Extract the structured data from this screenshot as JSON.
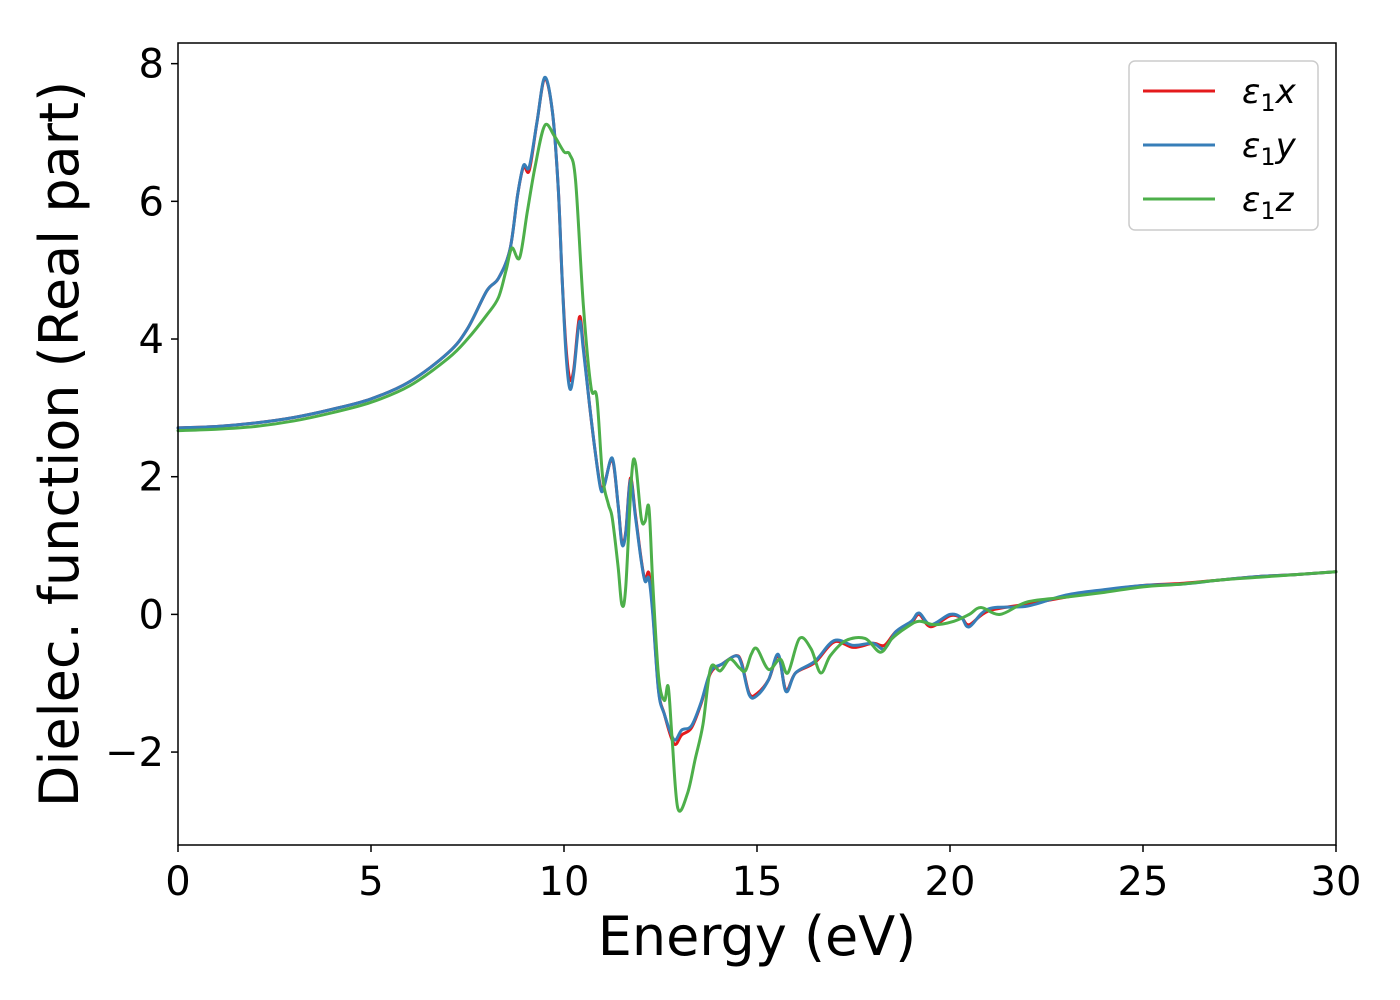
{
  "chart_data": {
    "type": "line",
    "title": "",
    "xlabel": "Energy (eV)",
    "ylabel": "Dielec. function (Real part)",
    "xlim": [
      0,
      30
    ],
    "ylim": [
      -3.35,
      8.3
    ],
    "x_ticks": [
      0,
      5,
      10,
      15,
      20,
      25,
      30
    ],
    "y_ticks": [
      -2,
      0,
      2,
      4,
      6,
      8
    ],
    "x_tick_labels": [
      "0",
      "5",
      "10",
      "15",
      "20",
      "25",
      "30"
    ],
    "y_tick_labels": [
      "−2",
      "0",
      "2",
      "4",
      "6",
      "8"
    ],
    "grid": false,
    "legend_position": "top-right",
    "series": [
      {
        "name": "ε1x",
        "name_base": "ε",
        "name_sub": "1",
        "name_var": "x",
        "color": "#e41a1c",
        "points": [
          [
            0,
            2.71
          ],
          [
            1,
            2.73
          ],
          [
            2,
            2.78
          ],
          [
            3,
            2.86
          ],
          [
            4,
            2.98
          ],
          [
            5,
            3.13
          ],
          [
            6,
            3.38
          ],
          [
            7,
            3.8
          ],
          [
            7.5,
            4.15
          ],
          [
            8,
            4.7
          ],
          [
            8.3,
            4.88
          ],
          [
            8.6,
            5.3
          ],
          [
            8.8,
            6.1
          ],
          [
            8.95,
            6.5
          ],
          [
            9.1,
            6.45
          ],
          [
            9.3,
            7.15
          ],
          [
            9.5,
            7.78
          ],
          [
            9.7,
            7.3
          ],
          [
            9.85,
            6.2
          ],
          [
            9.95,
            4.9
          ],
          [
            10.05,
            3.9
          ],
          [
            10.15,
            3.42
          ],
          [
            10.25,
            3.55
          ],
          [
            10.4,
            4.32
          ],
          [
            10.5,
            3.9
          ],
          [
            10.65,
            3.1
          ],
          [
            10.8,
            2.4
          ],
          [
            10.95,
            1.85
          ],
          [
            11.05,
            1.9
          ],
          [
            11.25,
            2.25
          ],
          [
            11.4,
            1.6
          ],
          [
            11.5,
            1.05
          ],
          [
            11.6,
            1.2
          ],
          [
            11.72,
            1.98
          ],
          [
            11.85,
            1.45
          ],
          [
            12.0,
            0.8
          ],
          [
            12.1,
            0.5
          ],
          [
            12.2,
            0.6
          ],
          [
            12.3,
            0.05
          ],
          [
            12.45,
            -1.1
          ],
          [
            12.6,
            -1.45
          ],
          [
            12.85,
            -1.88
          ],
          [
            13.05,
            -1.75
          ],
          [
            13.3,
            -1.65
          ],
          [
            13.55,
            -1.3
          ],
          [
            13.8,
            -0.85
          ],
          [
            14.1,
            -0.72
          ],
          [
            14.45,
            -0.6
          ],
          [
            14.6,
            -0.7
          ],
          [
            14.8,
            -1.15
          ],
          [
            15.0,
            -1.15
          ],
          [
            15.3,
            -0.95
          ],
          [
            15.55,
            -0.6
          ],
          [
            15.75,
            -1.1
          ],
          [
            16.0,
            -0.85
          ],
          [
            16.5,
            -0.7
          ],
          [
            17.0,
            -0.4
          ],
          [
            17.5,
            -0.48
          ],
          [
            18.0,
            -0.42
          ],
          [
            18.3,
            -0.45
          ],
          [
            18.6,
            -0.25
          ],
          [
            19.0,
            -0.12
          ],
          [
            19.2,
            0.0
          ],
          [
            19.5,
            -0.18
          ],
          [
            20.0,
            -0.02
          ],
          [
            20.3,
            -0.05
          ],
          [
            20.5,
            -0.15
          ],
          [
            21,
            0.05
          ],
          [
            22,
            0.15
          ],
          [
            23,
            0.25
          ],
          [
            24,
            0.35
          ],
          [
            25,
            0.42
          ],
          [
            26,
            0.45
          ],
          [
            27,
            0.5
          ],
          [
            28,
            0.55
          ],
          [
            29,
            0.58
          ],
          [
            30,
            0.62
          ]
        ]
      },
      {
        "name": "ε1y",
        "name_base": "ε",
        "name_sub": "1",
        "name_var": "y",
        "color": "#377eb8",
        "points": [
          [
            0,
            2.71
          ],
          [
            1,
            2.73
          ],
          [
            2,
            2.78
          ],
          [
            3,
            2.86
          ],
          [
            4,
            2.98
          ],
          [
            5,
            3.13
          ],
          [
            6,
            3.38
          ],
          [
            7,
            3.8
          ],
          [
            7.5,
            4.15
          ],
          [
            8,
            4.7
          ],
          [
            8.3,
            4.88
          ],
          [
            8.6,
            5.3
          ],
          [
            8.8,
            6.1
          ],
          [
            8.95,
            6.52
          ],
          [
            9.1,
            6.5
          ],
          [
            9.3,
            7.15
          ],
          [
            9.5,
            7.8
          ],
          [
            9.7,
            7.3
          ],
          [
            9.85,
            6.2
          ],
          [
            9.95,
            4.9
          ],
          [
            10.05,
            3.8
          ],
          [
            10.15,
            3.28
          ],
          [
            10.25,
            3.5
          ],
          [
            10.4,
            4.25
          ],
          [
            10.5,
            3.85
          ],
          [
            10.65,
            3.1
          ],
          [
            10.8,
            2.4
          ],
          [
            10.95,
            1.82
          ],
          [
            11.05,
            1.88
          ],
          [
            11.25,
            2.27
          ],
          [
            11.4,
            1.6
          ],
          [
            11.5,
            1.02
          ],
          [
            11.6,
            1.18
          ],
          [
            11.72,
            1.95
          ],
          [
            11.85,
            1.42
          ],
          [
            12.0,
            0.78
          ],
          [
            12.1,
            0.48
          ],
          [
            12.2,
            0.52
          ],
          [
            12.3,
            0.0
          ],
          [
            12.45,
            -1.12
          ],
          [
            12.6,
            -1.45
          ],
          [
            12.85,
            -1.82
          ],
          [
            13.05,
            -1.68
          ],
          [
            13.3,
            -1.62
          ],
          [
            13.55,
            -1.28
          ],
          [
            13.8,
            -0.83
          ],
          [
            14.1,
            -0.72
          ],
          [
            14.45,
            -0.6
          ],
          [
            14.6,
            -0.72
          ],
          [
            14.8,
            -1.17
          ],
          [
            15.0,
            -1.18
          ],
          [
            15.3,
            -0.95
          ],
          [
            15.55,
            -0.58
          ],
          [
            15.75,
            -1.12
          ],
          [
            16.0,
            -0.85
          ],
          [
            16.5,
            -0.68
          ],
          [
            17.0,
            -0.38
          ],
          [
            17.5,
            -0.45
          ],
          [
            18.0,
            -0.42
          ],
          [
            18.3,
            -0.5
          ],
          [
            18.6,
            -0.25
          ],
          [
            19.0,
            -0.1
          ],
          [
            19.2,
            0.02
          ],
          [
            19.5,
            -0.15
          ],
          [
            20.0,
            -0.0
          ],
          [
            20.3,
            -0.05
          ],
          [
            20.5,
            -0.18
          ],
          [
            21,
            0.08
          ],
          [
            22,
            0.12
          ],
          [
            23,
            0.28
          ],
          [
            24,
            0.36
          ],
          [
            25,
            0.42
          ],
          [
            26,
            0.44
          ],
          [
            27,
            0.5
          ],
          [
            28,
            0.55
          ],
          [
            29,
            0.58
          ],
          [
            30,
            0.62
          ]
        ]
      },
      {
        "name": "ε1z",
        "name_base": "ε",
        "name_sub": "1",
        "name_var": "z",
        "color": "#4daf4a",
        "points": [
          [
            0,
            2.67
          ],
          [
            1,
            2.69
          ],
          [
            2,
            2.73
          ],
          [
            3,
            2.81
          ],
          [
            4,
            2.93
          ],
          [
            5,
            3.08
          ],
          [
            6,
            3.32
          ],
          [
            7,
            3.72
          ],
          [
            7.5,
            4.0
          ],
          [
            8,
            4.35
          ],
          [
            8.3,
            4.6
          ],
          [
            8.5,
            5.0
          ],
          [
            8.65,
            5.32
          ],
          [
            8.85,
            5.18
          ],
          [
            9.05,
            5.85
          ],
          [
            9.25,
            6.5
          ],
          [
            9.5,
            7.1
          ],
          [
            9.75,
            6.95
          ],
          [
            10.0,
            6.72
          ],
          [
            10.15,
            6.68
          ],
          [
            10.3,
            6.3
          ],
          [
            10.5,
            4.5
          ],
          [
            10.7,
            3.3
          ],
          [
            10.85,
            3.15
          ],
          [
            11.0,
            2.0
          ],
          [
            11.15,
            1.6
          ],
          [
            11.25,
            1.4
          ],
          [
            11.4,
            0.7
          ],
          [
            11.5,
            0.14
          ],
          [
            11.6,
            0.4
          ],
          [
            11.75,
            2.0
          ],
          [
            11.85,
            2.2
          ],
          [
            12.0,
            1.4
          ],
          [
            12.1,
            1.35
          ],
          [
            12.2,
            1.55
          ],
          [
            12.3,
            0.45
          ],
          [
            12.45,
            -0.9
          ],
          [
            12.6,
            -1.25
          ],
          [
            12.7,
            -1.05
          ],
          [
            12.8,
            -1.8
          ],
          [
            12.95,
            -2.82
          ],
          [
            13.2,
            -2.6
          ],
          [
            13.4,
            -2.1
          ],
          [
            13.6,
            -1.6
          ],
          [
            13.8,
            -0.78
          ],
          [
            14.05,
            -0.82
          ],
          [
            14.3,
            -0.65
          ],
          [
            14.55,
            -0.78
          ],
          [
            14.7,
            -0.82
          ],
          [
            14.85,
            -0.58
          ],
          [
            15.0,
            -0.5
          ],
          [
            15.3,
            -0.8
          ],
          [
            15.6,
            -0.65
          ],
          [
            15.8,
            -0.85
          ],
          [
            16.1,
            -0.35
          ],
          [
            16.4,
            -0.5
          ],
          [
            16.65,
            -0.85
          ],
          [
            16.9,
            -0.6
          ],
          [
            17.3,
            -0.38
          ],
          [
            17.8,
            -0.35
          ],
          [
            18.2,
            -0.55
          ],
          [
            18.5,
            -0.35
          ],
          [
            18.9,
            -0.18
          ],
          [
            19.2,
            -0.1
          ],
          [
            19.6,
            -0.15
          ],
          [
            20.1,
            -0.1
          ],
          [
            20.5,
            0.0
          ],
          [
            20.8,
            0.1
          ],
          [
            21.3,
            0.0
          ],
          [
            22,
            0.18
          ],
          [
            23,
            0.25
          ],
          [
            24,
            0.32
          ],
          [
            25,
            0.4
          ],
          [
            26,
            0.44
          ],
          [
            27,
            0.5
          ],
          [
            28,
            0.54
          ],
          [
            29,
            0.58
          ],
          [
            30,
            0.62
          ]
        ]
      }
    ]
  }
}
